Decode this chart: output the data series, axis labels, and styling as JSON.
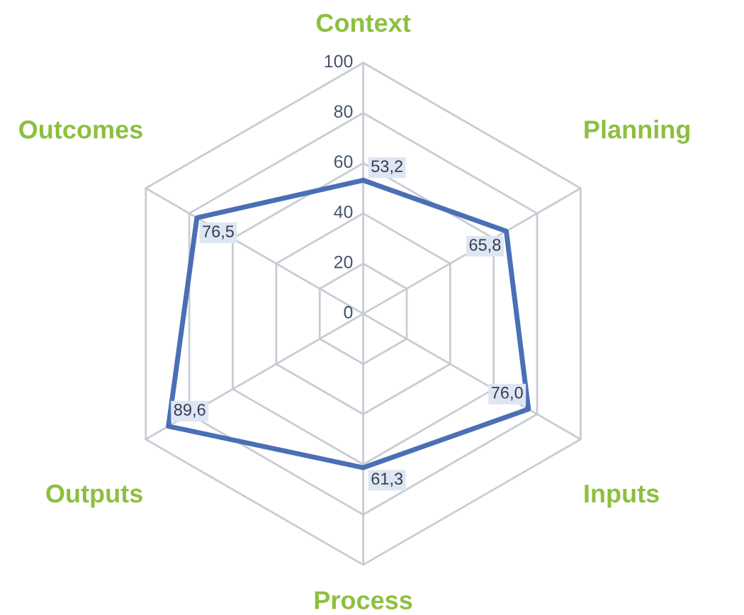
{
  "chart_data": {
    "type": "radar",
    "categories": [
      "Context",
      "Planning",
      "Inputs",
      "Process",
      "Outputs",
      "Outcomes"
    ],
    "series": [
      {
        "color": "#4a6fb5",
        "values": [
          53.2,
          65.8,
          76.0,
          61.3,
          89.6,
          76.5
        ],
        "value_labels": [
          "53,2",
          "65,8",
          "76,0",
          "61,3",
          "89,6",
          "76,5"
        ]
      }
    ],
    "ylim": [
      0,
      100
    ],
    "yticks": [
      0,
      20,
      40,
      60,
      80,
      100
    ],
    "grid": true
  }
}
